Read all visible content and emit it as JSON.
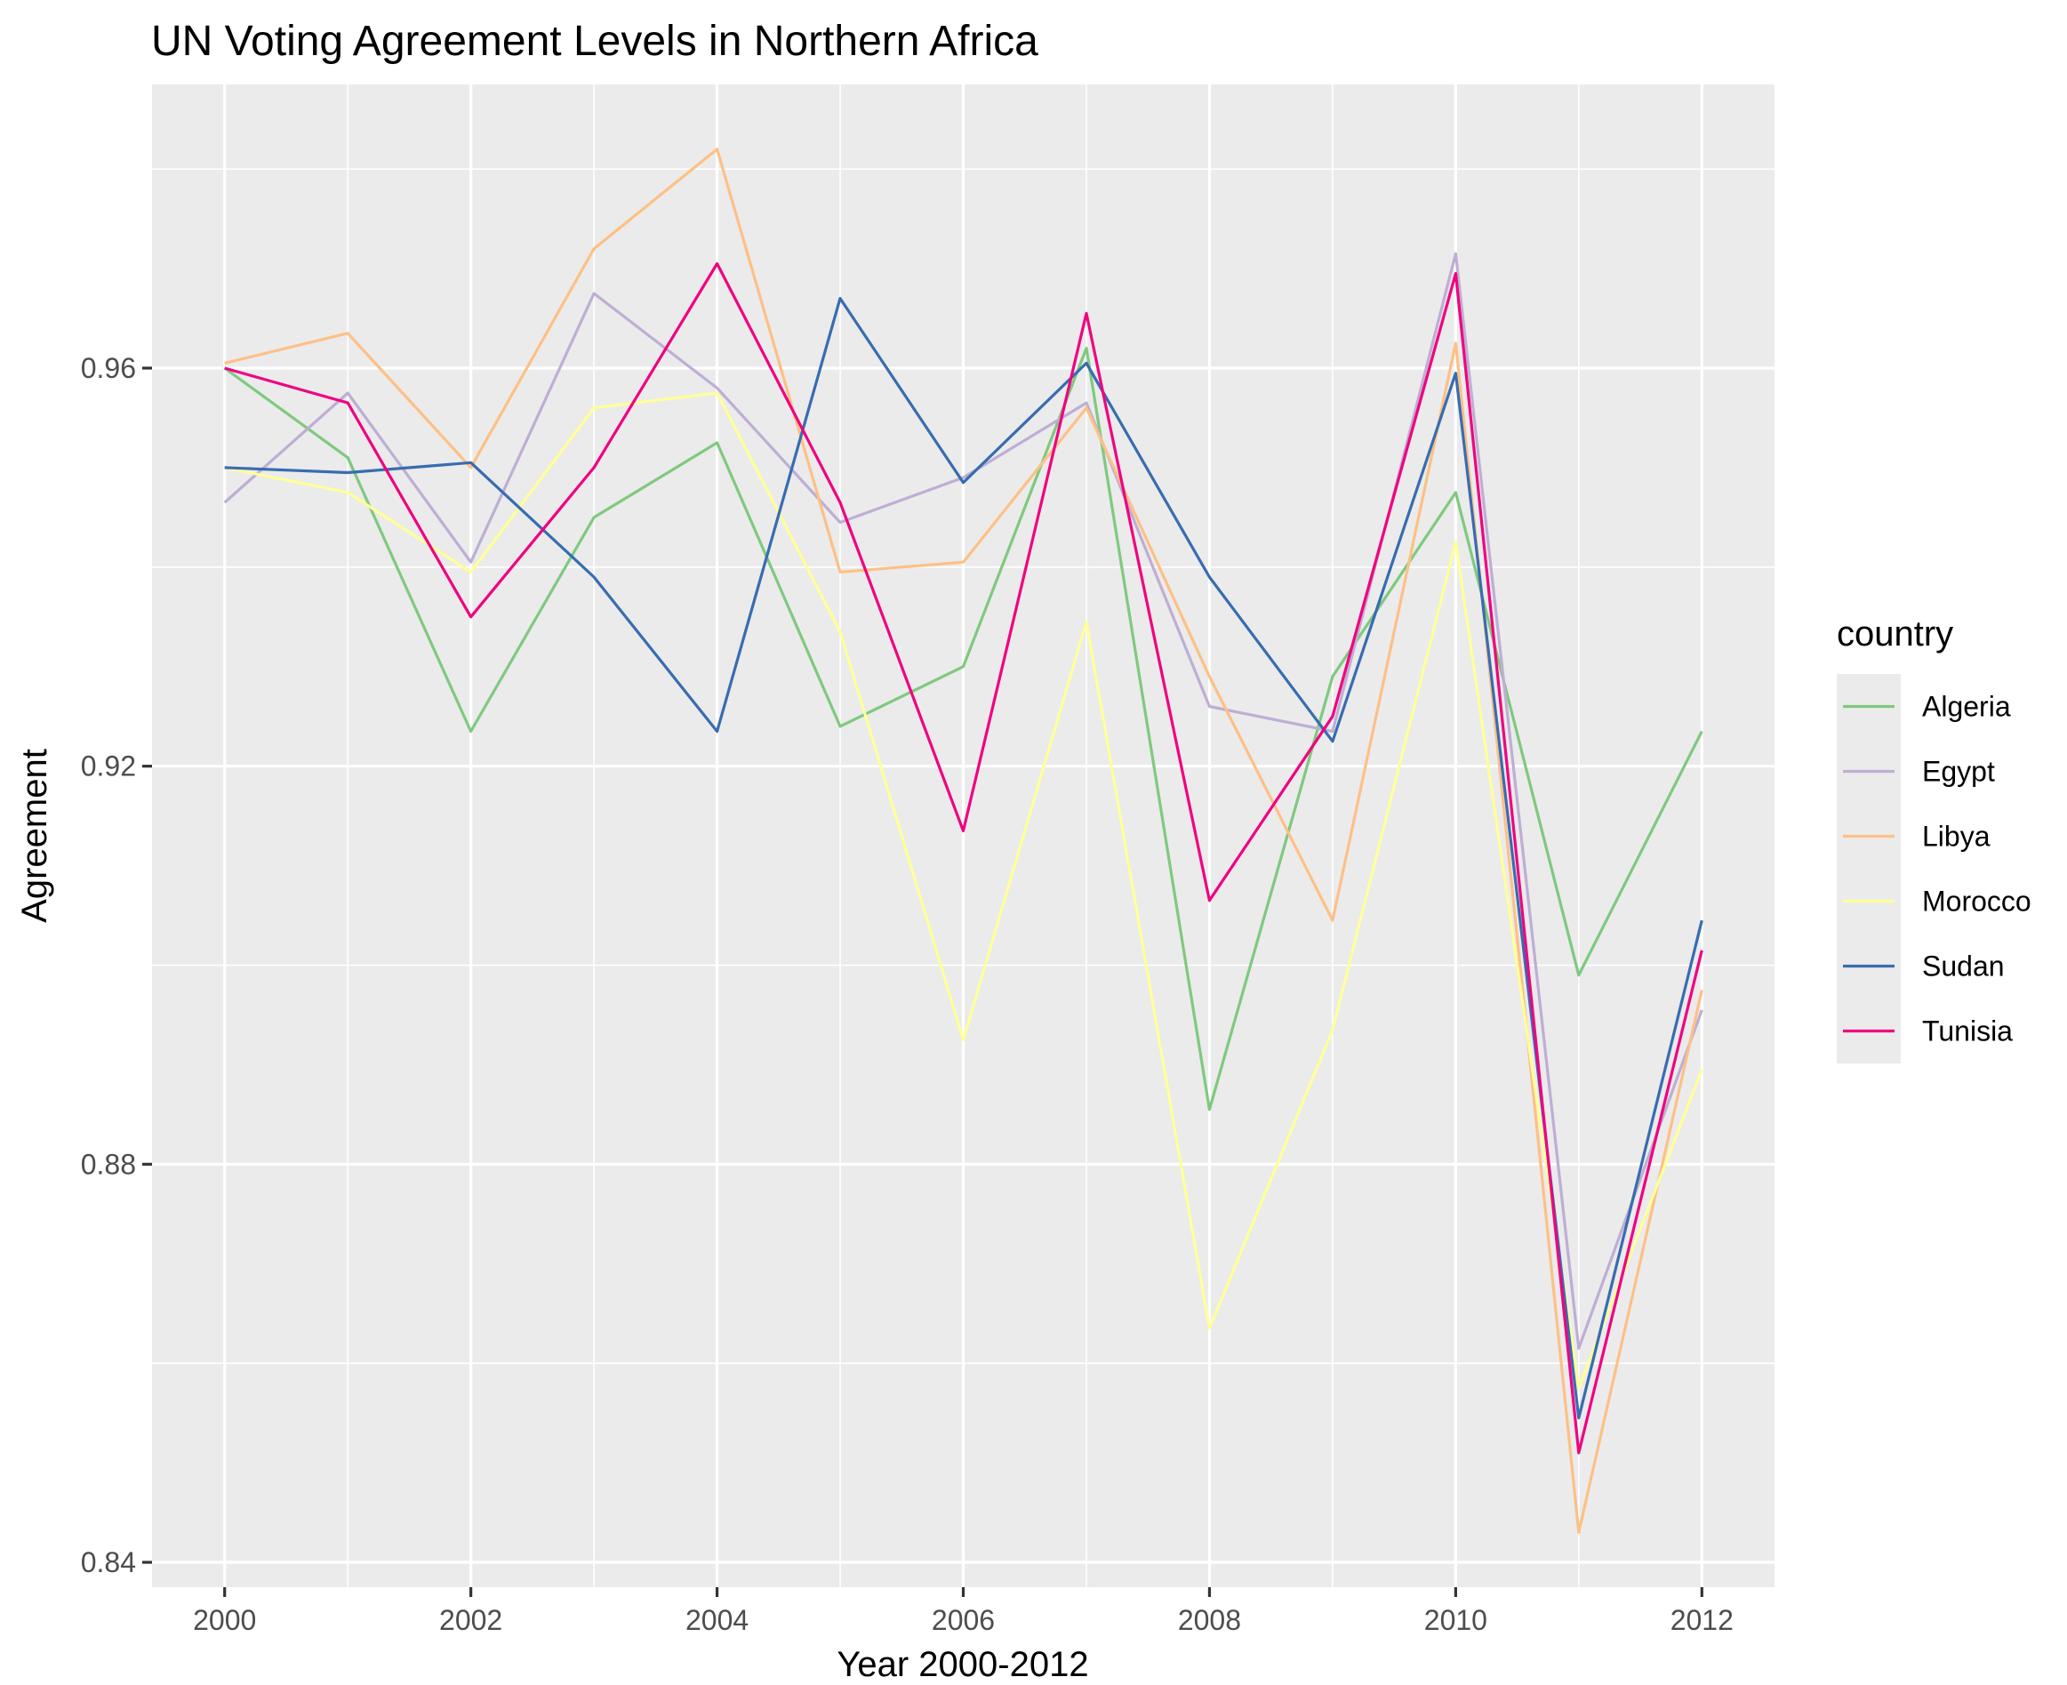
{
  "chart_data": {
    "type": "line",
    "title": "UN Voting Agreement Levels in Northern Africa",
    "xlabel": "Year 2000-2012",
    "ylabel": "Agreement",
    "x": [
      2000,
      2001,
      2002,
      2003,
      2004,
      2005,
      2006,
      2007,
      2008,
      2009,
      2010,
      2011,
      2012
    ],
    "xlim": [
      1999.41,
      2012.59
    ],
    "ylim": [
      0.8375,
      0.9885
    ],
    "x_ticks": [
      2000,
      2002,
      2004,
      2006,
      2008,
      2010,
      2012
    ],
    "x_tick_labels": [
      "2000",
      "2002",
      "2004",
      "2006",
      "2008",
      "2010",
      "2012"
    ],
    "y_ticks": [
      0.84,
      0.88,
      0.92,
      0.96
    ],
    "y_tick_labels": [
      "0.84",
      "0.88",
      "0.92",
      "0.96"
    ],
    "y_minor_ticks": [
      0.86,
      0.9,
      0.94,
      0.98
    ],
    "x_minor_ticks": [
      2001,
      2003,
      2005,
      2007,
      2009,
      2011
    ],
    "grid": true,
    "legend_title": "country",
    "legend_position": "right",
    "series": [
      {
        "name": "Algeria",
        "color": "#7FC97F",
        "values": [
          0.96,
          0.951,
          0.9235,
          0.945,
          0.9525,
          0.924,
          0.93,
          0.962,
          0.8855,
          0.929,
          0.9475,
          0.899,
          0.9235
        ]
      },
      {
        "name": "Egypt",
        "color": "#BEAED4",
        "values": [
          0.9465,
          0.9575,
          0.9405,
          0.9675,
          0.958,
          0.9445,
          0.949,
          0.9565,
          0.926,
          0.9235,
          0.9715,
          0.8615,
          0.8955
        ]
      },
      {
        "name": "Libya",
        "color": "#FDC086",
        "values": [
          0.9605,
          0.9635,
          0.95,
          0.972,
          0.982,
          0.9395,
          0.9405,
          0.956,
          0.929,
          0.9045,
          0.9625,
          0.843,
          0.8975
        ]
      },
      {
        "name": "Morocco",
        "color": "#FFFF99",
        "values": [
          0.95,
          0.9475,
          0.9395,
          0.956,
          0.9575,
          0.9335,
          0.8925,
          0.9345,
          0.8635,
          0.8935,
          0.9425,
          0.8575,
          0.8895
        ]
      },
      {
        "name": "Sudan",
        "color": "#386CB0",
        "values": [
          0.95,
          0.9495,
          0.9505,
          0.939,
          0.9235,
          0.967,
          0.9485,
          0.9605,
          0.939,
          0.9225,
          0.9595,
          0.8545,
          0.9045
        ]
      },
      {
        "name": "Tunisia",
        "color": "#F0027F",
        "values": [
          0.96,
          0.9565,
          0.935,
          0.95,
          0.9705,
          0.9465,
          0.9135,
          0.9655,
          0.9065,
          0.925,
          0.9695,
          0.851,
          0.9015
        ]
      }
    ]
  }
}
